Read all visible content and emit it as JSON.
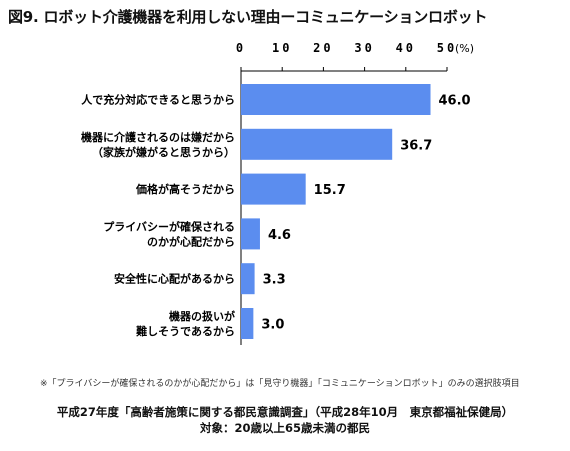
{
  "title": "図9. ロボット介護機器を利用しない理由ーコミュニケーションロボット",
  "note": "※「プライバシーが確保されるのかが心配だから」は「見守り機器」「コミュニケーションロボット」のみの選択肢項目",
  "source_line1": "平成27年度「高齢者施策に関する都民意識調査」（平成28年10月　東京都福祉保健局）",
  "source_line2": "対象：20歳以上65歳未満の都民",
  "colors": {
    "bar": "#5b8def",
    "axis": "#000000"
  },
  "chart_data": {
    "type": "bar",
    "orientation": "horizontal",
    "unit": "(%)",
    "xlim": [
      0,
      50
    ],
    "ticks": [
      0,
      10,
      20,
      30,
      40,
      50
    ],
    "grid": false,
    "categories": [
      [
        "人で充分対応できると思うから"
      ],
      [
        "機器に介護されるのは嫌だから",
        "（家族が嫌がると思うから）"
      ],
      [
        "価格が高そうだから"
      ],
      [
        "プライバシーが確保される",
        "のかが心配だから"
      ],
      [
        "安全性に心配があるから"
      ],
      [
        "機器の扱いが",
        "難しそうであるから"
      ]
    ],
    "values": [
      46.0,
      36.7,
      15.7,
      4.6,
      3.3,
      3.0
    ],
    "value_labels": [
      "46.0",
      "36.7",
      "15.7",
      "4.6",
      "3.3",
      "3.0"
    ]
  }
}
